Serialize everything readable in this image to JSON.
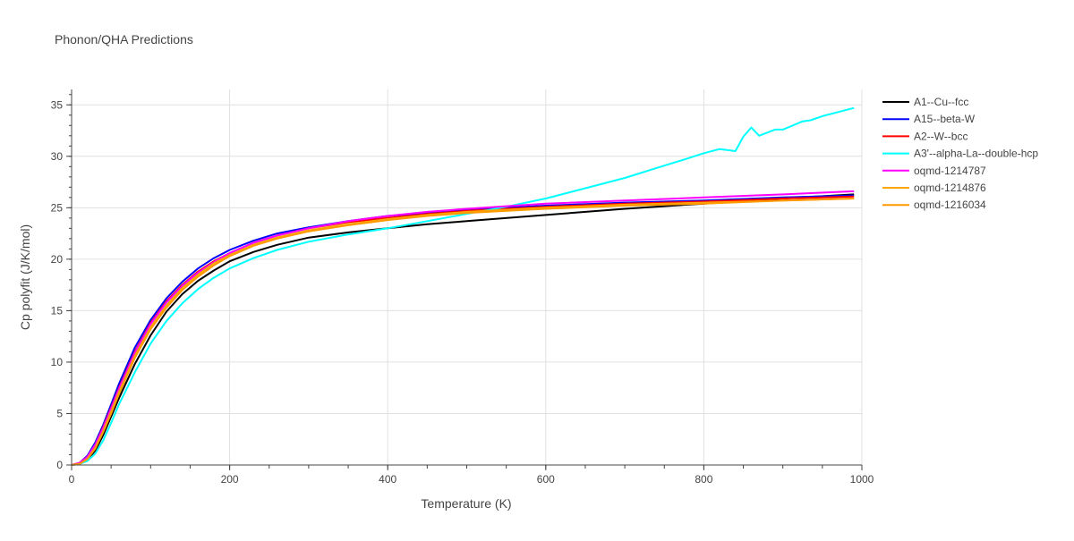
{
  "chart_data": {
    "type": "line",
    "title": "Phonon/QHA Predictions",
    "xlabel": "Temperature (K)",
    "ylabel": "Cp polyfit (J/K/mol)",
    "xlim": [
      0,
      1000
    ],
    "ylim": [
      0,
      36.5
    ],
    "xticks": [
      0,
      200,
      400,
      600,
      800,
      1000
    ],
    "yticks": [
      0,
      5,
      10,
      15,
      20,
      25,
      30,
      35
    ],
    "grid": true,
    "legend_position": "right",
    "series": [
      {
        "name": "A1--Cu--fcc",
        "color": "#000000",
        "x": [
          0,
          10,
          20,
          30,
          40,
          50,
          60,
          80,
          100,
          120,
          140,
          160,
          180,
          200,
          230,
          260,
          300,
          350,
          400,
          450,
          500,
          600,
          700,
          800,
          900,
          990
        ],
        "y": [
          0,
          0.1,
          0.5,
          1.4,
          2.9,
          4.7,
          6.5,
          9.8,
          12.6,
          14.9,
          16.6,
          17.9,
          18.9,
          19.8,
          20.7,
          21.4,
          22.1,
          22.6,
          23.0,
          23.4,
          23.7,
          24.3,
          24.9,
          25.4,
          25.9,
          26.3
        ]
      },
      {
        "name": "A15--beta-W",
        "color": "#0000ff",
        "x": [
          0,
          10,
          20,
          30,
          40,
          50,
          60,
          80,
          100,
          120,
          140,
          160,
          180,
          200,
          230,
          260,
          300,
          350,
          400,
          450,
          500,
          600,
          700,
          800,
          900,
          990
        ],
        "y": [
          0,
          0.2,
          0.9,
          2.2,
          3.9,
          5.9,
          7.9,
          11.4,
          14.1,
          16.2,
          17.8,
          19.1,
          20.1,
          20.9,
          21.8,
          22.5,
          23.1,
          23.7,
          24.2,
          24.5,
          24.8,
          25.2,
          25.5,
          25.7,
          26.0,
          26.2
        ]
      },
      {
        "name": "A2--W--bcc",
        "color": "#ff0000",
        "x": [
          0,
          10,
          20,
          30,
          40,
          50,
          60,
          80,
          100,
          120,
          140,
          160,
          180,
          200,
          230,
          260,
          300,
          350,
          400,
          450,
          500,
          600,
          700,
          800,
          900,
          990
        ],
        "y": [
          0,
          0.2,
          0.8,
          2.0,
          3.7,
          5.6,
          7.5,
          11.0,
          13.8,
          15.9,
          17.5,
          18.8,
          19.8,
          20.6,
          21.6,
          22.3,
          23.0,
          23.6,
          24.0,
          24.4,
          24.7,
          25.1,
          25.4,
          25.6,
          25.9,
          26.1
        ]
      },
      {
        "name": "A3'--alpha-La--double-hcp",
        "color": "#00ffff",
        "x": [
          0,
          10,
          20,
          30,
          40,
          50,
          60,
          80,
          100,
          120,
          140,
          160,
          180,
          200,
          230,
          260,
          300,
          350,
          400,
          450,
          500,
          550,
          600,
          650,
          700,
          750,
          780,
          800,
          820,
          840,
          850,
          860,
          870,
          890,
          900,
          925,
          935,
          950,
          970,
          990
        ],
        "y": [
          0,
          0.1,
          0.4,
          1.1,
          2.4,
          4.1,
          5.9,
          9.0,
          11.8,
          14.0,
          15.7,
          17.1,
          18.2,
          19.1,
          20.1,
          20.9,
          21.7,
          22.4,
          23.0,
          23.7,
          24.4,
          25.1,
          25.9,
          26.9,
          27.9,
          29.1,
          29.8,
          30.3,
          30.7,
          30.5,
          31.9,
          32.8,
          32.0,
          32.6,
          32.6,
          33.4,
          33.5,
          33.9,
          34.3,
          34.7
        ]
      },
      {
        "name": "oqmd-1214787",
        "color": "#ff00ff",
        "x": [
          0,
          10,
          20,
          30,
          40,
          50,
          60,
          80,
          100,
          120,
          140,
          160,
          180,
          200,
          230,
          260,
          300,
          350,
          400,
          450,
          500,
          600,
          700,
          800,
          900,
          990
        ],
        "y": [
          0,
          0.2,
          0.8,
          2.0,
          3.6,
          5.5,
          7.4,
          10.9,
          13.7,
          15.8,
          17.4,
          18.7,
          19.7,
          20.6,
          21.6,
          22.3,
          23.0,
          23.7,
          24.2,
          24.6,
          24.9,
          25.4,
          25.7,
          26.0,
          26.3,
          26.6
        ]
      },
      {
        "name": "oqmd-1214876",
        "color": "#ffa500",
        "x": [
          0,
          10,
          20,
          30,
          40,
          50,
          60,
          80,
          100,
          120,
          140,
          160,
          180,
          200,
          230,
          260,
          300,
          350,
          400,
          450,
          500,
          600,
          700,
          800,
          900,
          990
        ],
        "y": [
          0,
          0.1,
          0.6,
          1.7,
          3.3,
          5.2,
          7.1,
          10.6,
          13.4,
          15.5,
          17.2,
          18.5,
          19.6,
          20.4,
          21.4,
          22.1,
          22.8,
          23.4,
          23.9,
          24.3,
          24.6,
          25.0,
          25.3,
          25.5,
          25.7,
          25.9
        ]
      },
      {
        "name": "oqmd-1216034",
        "color": "#ff9900",
        "x": [
          0,
          10,
          20,
          30,
          40,
          50,
          60,
          80,
          100,
          120,
          140,
          160,
          180,
          200,
          230,
          260,
          300,
          350,
          400,
          450,
          500,
          600,
          700,
          800,
          900,
          990
        ],
        "y": [
          0,
          0.1,
          0.6,
          1.6,
          3.2,
          5.0,
          6.9,
          10.4,
          13.2,
          15.3,
          17.0,
          18.3,
          19.4,
          20.3,
          21.3,
          22.0,
          22.7,
          23.3,
          23.8,
          24.2,
          24.5,
          24.9,
          25.2,
          25.4,
          25.7,
          25.9
        ]
      }
    ]
  }
}
